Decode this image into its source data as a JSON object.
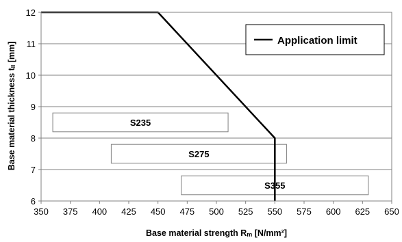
{
  "chart_data": {
    "type": "line",
    "xlabel": "Base material strength R",
    "xlabel_sub": "m",
    "xlabel_unit": " [N/mm²]",
    "ylabel": "Base material thickness t",
    "ylabel_sub": "II",
    "ylabel_unit": " [mm]",
    "xlim": [
      350,
      650
    ],
    "ylim": [
      6,
      12
    ],
    "x_ticks": [
      "350",
      "375",
      "400",
      "425",
      "450",
      "475",
      "500",
      "525",
      "550",
      "575",
      "600",
      "625",
      "650"
    ],
    "y_ticks": [
      "6",
      "7",
      "8",
      "9",
      "10",
      "11",
      "12"
    ],
    "grid": "horizontal",
    "legend_position": "top-right",
    "series": [
      {
        "name": "Application limit",
        "color": "#000000",
        "points": [
          [
            350,
            12
          ],
          [
            450,
            12
          ],
          [
            550,
            8
          ],
          [
            550,
            6
          ]
        ]
      }
    ],
    "bands": [
      {
        "label": "S235",
        "x_range": [
          360,
          510
        ],
        "y_range": [
          8.2,
          8.8
        ]
      },
      {
        "label": "S275",
        "x_range": [
          410,
          560
        ],
        "y_range": [
          7.2,
          7.8
        ]
      },
      {
        "label": "S355",
        "x_range": [
          470,
          630
        ],
        "y_range": [
          6.2,
          6.8
        ]
      }
    ]
  }
}
